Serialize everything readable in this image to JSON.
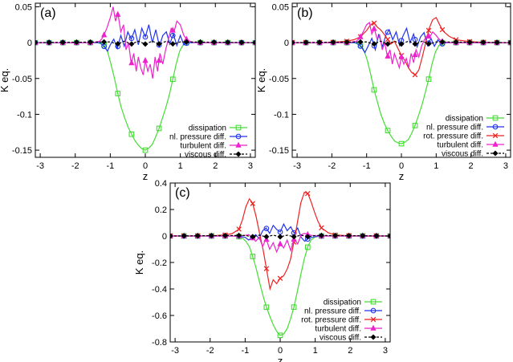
{
  "chart_data": [
    {
      "type": "line",
      "panel_label": "(a)",
      "xlabel": "z",
      "ylabel": "K eq.",
      "xlim": [
        -3.14,
        3.14
      ],
      "ylim": [
        -0.16,
        0.055
      ],
      "x_ticks": [
        -3,
        -2,
        -1,
        0,
        1,
        2,
        3
      ],
      "y_ticks": [
        0.05,
        0,
        -0.05,
        -0.1,
        -0.15
      ],
      "y_tick_labels": [
        "0.05",
        "0",
        "-0.05",
        "-0.1",
        "-0.15"
      ],
      "grid": false,
      "legend_position": "bottom-right",
      "series": [
        {
          "name": "dissipation",
          "color": "#44dd33",
          "marker": "square",
          "x": [
            -3.14,
            -2.75,
            -2.36,
            -1.96,
            -1.57,
            -1.37,
            -1.18,
            -1.08,
            -0.98,
            -0.88,
            -0.79,
            -0.69,
            -0.59,
            -0.49,
            -0.39,
            -0.29,
            -0.2,
            -0.1,
            0.0,
            0.1,
            0.2,
            0.29,
            0.39,
            0.49,
            0.59,
            0.69,
            0.79,
            0.88,
            0.98,
            1.08,
            1.18,
            1.37,
            1.57,
            1.96,
            2.36,
            2.75,
            3.14
          ],
          "y": [
            0,
            0,
            0,
            0,
            0,
            0,
            -0.003,
            -0.012,
            -0.03,
            -0.05,
            -0.07,
            -0.09,
            -0.105,
            -0.118,
            -0.128,
            -0.137,
            -0.143,
            -0.148,
            -0.15,
            -0.147,
            -0.142,
            -0.132,
            -0.12,
            -0.105,
            -0.09,
            -0.072,
            -0.05,
            -0.03,
            -0.012,
            -0.003,
            0,
            0,
            0,
            0,
            0,
            0,
            0
          ]
        },
        {
          "name": "nl. pressure diff.",
          "color": "#2233ee",
          "marker": "circle",
          "x": [
            -3.14,
            -1.5,
            -1.3,
            -1.18,
            -1.08,
            -1.0,
            -0.9,
            -0.8,
            -0.7,
            -0.6,
            -0.5,
            -0.4,
            -0.3,
            -0.2,
            -0.1,
            0.0,
            0.1,
            0.2,
            0.3,
            0.4,
            0.5,
            0.6,
            0.7,
            0.8,
            0.9,
            1.0,
            1.1,
            1.2,
            1.4,
            3.14
          ],
          "y": [
            0,
            0,
            0,
            -0.005,
            -0.012,
            -0.003,
            0.005,
            -0.008,
            0.01,
            -0.005,
            0.015,
            0.005,
            0.018,
            -0.003,
            0.02,
            0.008,
            0.025,
            0.0,
            0.018,
            -0.005,
            0.01,
            0.015,
            -0.002,
            0.012,
            -0.004,
            0.01,
            -0.003,
            0,
            0,
            0
          ]
        },
        {
          "name": "turbulent diff.",
          "color": "#ee22cc",
          "marker": "triangle",
          "x": [
            -3.14,
            -1.5,
            -1.3,
            -1.2,
            -1.1,
            -1.0,
            -0.92,
            -0.85,
            -0.78,
            -0.7,
            -0.62,
            -0.55,
            -0.48,
            -0.4,
            -0.33,
            -0.26,
            -0.2,
            -0.13,
            -0.06,
            0.0,
            0.07,
            0.14,
            0.21,
            0.28,
            0.35,
            0.42,
            0.5,
            0.58,
            0.66,
            0.74,
            0.82,
            0.9,
            1.0,
            1.1,
            1.2,
            1.4,
            3.14
          ],
          "y": [
            0,
            0,
            0.002,
            0.008,
            0.02,
            0.035,
            0.05,
            0.03,
            0.04,
            0.015,
            0.025,
            -0.01,
            0.0,
            -0.03,
            -0.015,
            -0.04,
            -0.02,
            -0.035,
            -0.045,
            -0.025,
            -0.04,
            -0.03,
            -0.05,
            -0.02,
            -0.04,
            -0.015,
            -0.03,
            -0.01,
            0.005,
            0.02,
            0.015,
            0.03,
            0.025,
            0.01,
            0.003,
            0,
            0
          ]
        },
        {
          "name": "viscous diff.",
          "color": "#000000",
          "marker": "diamond",
          "dashed": true,
          "x": [
            -3.14,
            -1.0,
            -0.8,
            -0.6,
            -0.4,
            -0.2,
            0.0,
            0.2,
            0.4,
            0.6,
            0.8,
            1.0,
            3.14
          ],
          "y": [
            0,
            0.001,
            -0.002,
            0.002,
            -0.002,
            0.002,
            -0.002,
            0.002,
            -0.002,
            0.002,
            -0.002,
            0.001,
            0
          ]
        }
      ]
    },
    {
      "type": "line",
      "panel_label": "(b)",
      "xlabel": "z",
      "ylabel": "K eq.",
      "xlim": [
        -3.14,
        3.14
      ],
      "ylim": [
        -0.16,
        0.055
      ],
      "x_ticks": [
        -3,
        -2,
        -1,
        0,
        1,
        2,
        3
      ],
      "y_ticks": [
        0.05,
        0,
        -0.05,
        -0.1,
        -0.15
      ],
      "y_tick_labels": [
        "0.05",
        "0",
        "-0.05",
        "-0.1",
        "-0.15"
      ],
      "grid": false,
      "legend_position": "bottom-right",
      "series": [
        {
          "name": "dissipation",
          "color": "#44dd33",
          "marker": "square",
          "x": [
            -3.14,
            -2.75,
            -2.36,
            -1.96,
            -1.57,
            -1.37,
            -1.18,
            -1.08,
            -0.98,
            -0.88,
            -0.79,
            -0.69,
            -0.59,
            -0.49,
            -0.39,
            -0.29,
            -0.2,
            -0.1,
            0.0,
            0.1,
            0.2,
            0.29,
            0.39,
            0.49,
            0.59,
            0.69,
            0.79,
            0.88,
            0.98,
            1.08,
            1.18,
            1.37,
            1.57,
            1.96,
            2.36,
            2.75,
            3.14
          ],
          "y": [
            0,
            0,
            0,
            0,
            0,
            0,
            -0.003,
            -0.01,
            -0.025,
            -0.045,
            -0.065,
            -0.083,
            -0.1,
            -0.113,
            -0.123,
            -0.131,
            -0.137,
            -0.14,
            -0.141,
            -0.139,
            -0.135,
            -0.127,
            -0.116,
            -0.102,
            -0.087,
            -0.069,
            -0.05,
            -0.03,
            -0.013,
            -0.004,
            0,
            0,
            0,
            0,
            0,
            0,
            0
          ]
        },
        {
          "name": "nl. pressure diff.",
          "color": "#2233ee",
          "marker": "circle",
          "x": [
            -3.14,
            -1.5,
            -1.3,
            -1.15,
            -1.05,
            -0.95,
            -0.85,
            -0.75,
            -0.65,
            -0.55,
            -0.45,
            -0.35,
            -0.25,
            -0.15,
            -0.05,
            0.05,
            0.15,
            0.25,
            0.35,
            0.45,
            0.55,
            0.65,
            0.75,
            0.85,
            0.95,
            1.05,
            1.15,
            1.3,
            1.5,
            3.14
          ],
          "y": [
            0,
            0,
            0,
            -0.006,
            -0.014,
            -0.004,
            0.006,
            -0.01,
            0.012,
            -0.006,
            0.01,
            0.018,
            0.004,
            0.015,
            -0.004,
            0.01,
            0.02,
            0.0,
            0.012,
            -0.006,
            0.008,
            0.014,
            -0.004,
            0.006,
            -0.005,
            0.004,
            -0.002,
            0,
            0,
            0
          ]
        },
        {
          "name": "rot. pressure diff.",
          "color": "#ee2222",
          "marker": "x",
          "x": [
            -3.14,
            -2.75,
            -2.36,
            -1.96,
            -1.57,
            -1.37,
            -1.18,
            -1.0,
            -0.9,
            -0.8,
            -0.7,
            -0.6,
            -0.5,
            -0.4,
            -0.3,
            -0.2,
            -0.1,
            0.0,
            0.1,
            0.2,
            0.3,
            0.4,
            0.5,
            0.6,
            0.7,
            0.8,
            0.9,
            1.0,
            1.1,
            1.2,
            1.37,
            1.57,
            1.96,
            2.36,
            2.75,
            3.14
          ],
          "y": [
            0,
            0,
            0,
            0.0005,
            0.002,
            0.004,
            0.008,
            0.017,
            0.024,
            0.028,
            0.022,
            0.018,
            0.012,
            0.005,
            -0.002,
            0.002,
            -0.008,
            -0.018,
            -0.025,
            -0.035,
            -0.042,
            -0.045,
            -0.038,
            -0.02,
            0.0,
            0.02,
            0.032,
            0.035,
            0.025,
            0.016,
            0.009,
            0.004,
            0.0015,
            0.0005,
            0,
            0
          ]
        },
        {
          "name": "turbulent diff.",
          "color": "#ee22cc",
          "marker": "triangle",
          "x": [
            -3.14,
            -1.5,
            -1.3,
            -1.2,
            -1.1,
            -1.0,
            -0.92,
            -0.85,
            -0.78,
            -0.7,
            -0.62,
            -0.55,
            -0.48,
            -0.4,
            -0.33,
            -0.26,
            -0.2,
            -0.13,
            -0.06,
            0.0,
            0.07,
            0.14,
            0.21,
            0.28,
            0.35,
            0.42,
            0.5,
            0.58,
            0.66,
            0.74,
            0.82,
            0.9,
            1.0,
            1.1,
            1.2,
            1.4,
            3.14
          ],
          "y": [
            0,
            0,
            0.002,
            0.006,
            0.015,
            0.025,
            0.028,
            0.012,
            0.02,
            0.005,
            0.01,
            -0.01,
            0.0,
            -0.02,
            -0.01,
            -0.03,
            -0.015,
            -0.025,
            -0.035,
            -0.02,
            -0.03,
            -0.022,
            -0.035,
            -0.015,
            -0.028,
            -0.01,
            -0.02,
            -0.005,
            0.004,
            0.01,
            0.008,
            0.015,
            0.01,
            0.004,
            0.001,
            0,
            0
          ]
        },
        {
          "name": "viscous diff.",
          "color": "#000000",
          "marker": "diamond",
          "dashed": true,
          "x": [
            -3.14,
            -1.0,
            -0.8,
            -0.6,
            -0.4,
            -0.2,
            0.0,
            0.2,
            0.4,
            0.6,
            0.8,
            1.0,
            3.14
          ],
          "y": [
            0,
            0.001,
            -0.002,
            0.002,
            -0.002,
            0.002,
            -0.002,
            0.002,
            -0.002,
            0.002,
            -0.002,
            0.001,
            0
          ]
        }
      ]
    },
    {
      "type": "line",
      "panel_label": "(c)",
      "xlabel": "z",
      "ylabel": "K eq.",
      "xlim": [
        -3.14,
        3.14
      ],
      "ylim": [
        -0.8,
        0.4
      ],
      "x_ticks": [
        -3,
        -2,
        -1,
        0,
        1,
        2,
        3
      ],
      "y_ticks": [
        0.4,
        0.2,
        0,
        -0.2,
        -0.4,
        -0.6,
        -0.8
      ],
      "y_tick_labels": [
        "0.4",
        "0.2",
        "0",
        "-0.2",
        "-0.4",
        "-0.6",
        "-0.8"
      ],
      "grid": false,
      "legend_position": "bottom-right",
      "series": [
        {
          "name": "dissipation",
          "color": "#44dd33",
          "marker": "square",
          "x": [
            -3.14,
            -2.75,
            -2.36,
            -1.96,
            -1.57,
            -1.37,
            -1.18,
            -1.08,
            -0.98,
            -0.88,
            -0.79,
            -0.69,
            -0.59,
            -0.49,
            -0.39,
            -0.29,
            -0.2,
            -0.1,
            0.0,
            0.1,
            0.2,
            0.29,
            0.39,
            0.49,
            0.59,
            0.69,
            0.79,
            0.88,
            0.98,
            1.08,
            1.18,
            1.37,
            1.57,
            1.96,
            2.36,
            2.75,
            3.14
          ],
          "y": [
            0,
            0,
            0,
            0,
            0,
            0,
            -0.005,
            -0.015,
            -0.04,
            -0.08,
            -0.15,
            -0.24,
            -0.35,
            -0.45,
            -0.54,
            -0.61,
            -0.67,
            -0.72,
            -0.75,
            -0.74,
            -0.7,
            -0.63,
            -0.54,
            -0.42,
            -0.29,
            -0.17,
            -0.08,
            -0.03,
            -0.01,
            -0.003,
            0,
            0,
            0,
            0,
            0,
            0,
            0
          ]
        },
        {
          "name": "nl. pressure diff.",
          "color": "#2233ee",
          "marker": "circle",
          "x": [
            -3.14,
            -1.5,
            -1.2,
            -1.0,
            -0.9,
            -0.8,
            -0.7,
            -0.6,
            -0.5,
            -0.4,
            -0.3,
            -0.2,
            -0.1,
            0.0,
            0.1,
            0.2,
            0.3,
            0.4,
            0.5,
            0.6,
            0.7,
            0.8,
            0.9,
            1.0,
            1.2,
            1.5,
            3.14
          ],
          "y": [
            0,
            0,
            0,
            -0.01,
            -0.03,
            -0.015,
            0.01,
            -0.02,
            0.04,
            0.06,
            0.02,
            0.08,
            0.05,
            0.03,
            0.09,
            0.04,
            0.07,
            0.02,
            0.06,
            -0.01,
            -0.04,
            -0.02,
            -0.01,
            -0.005,
            0,
            0,
            0
          ]
        },
        {
          "name": "rot. pressure diff.",
          "color": "#ee2222",
          "marker": "x",
          "x": [
            -3.14,
            -2.75,
            -2.36,
            -1.96,
            -1.57,
            -1.37,
            -1.18,
            -1.08,
            -0.98,
            -0.88,
            -0.79,
            -0.69,
            -0.59,
            -0.49,
            -0.39,
            -0.29,
            -0.2,
            -0.1,
            0.0,
            0.1,
            0.2,
            0.29,
            0.39,
            0.49,
            0.59,
            0.69,
            0.79,
            0.88,
            0.98,
            1.08,
            1.18,
            1.37,
            1.57,
            1.96,
            2.36,
            2.75,
            3.14
          ],
          "y": [
            0,
            0,
            0,
            0.002,
            0.008,
            0.018,
            0.05,
            0.12,
            0.22,
            0.28,
            0.25,
            0.15,
            0.02,
            -0.1,
            -0.25,
            -0.4,
            -0.33,
            -0.36,
            -0.32,
            -0.3,
            -0.25,
            -0.18,
            -0.05,
            0.1,
            0.25,
            0.33,
            0.32,
            0.26,
            0.18,
            0.11,
            0.06,
            0.025,
            0.008,
            0.002,
            0,
            0,
            0
          ]
        },
        {
          "name": "turbulent diff.",
          "color": "#ee22cc",
          "marker": "triangle",
          "x": [
            -3.14,
            -1.5,
            -1.2,
            -1.0,
            -0.9,
            -0.8,
            -0.7,
            -0.6,
            -0.5,
            -0.4,
            -0.3,
            -0.2,
            -0.1,
            0.0,
            0.1,
            0.2,
            0.3,
            0.4,
            0.5,
            0.6,
            0.7,
            0.8,
            0.9,
            1.0,
            1.2,
            1.5,
            3.14
          ],
          "y": [
            0,
            0,
            0,
            0.005,
            0.01,
            -0.01,
            -0.04,
            -0.01,
            -0.08,
            -0.02,
            -0.1,
            -0.05,
            -0.12,
            -0.06,
            -0.09,
            -0.03,
            -0.11,
            -0.02,
            -0.06,
            0.01,
            0.02,
            0.01,
            0.005,
            0.002,
            0,
            0,
            0
          ]
        },
        {
          "name": "viscous diff.",
          "color": "#000000",
          "marker": "diamond",
          "dashed": true,
          "x": [
            -3.14,
            -1.0,
            -0.8,
            -0.6,
            -0.4,
            -0.2,
            0.0,
            0.2,
            0.4,
            0.6,
            0.8,
            1.0,
            3.14
          ],
          "y": [
            0,
            0.004,
            -0.006,
            0.006,
            -0.006,
            0.006,
            -0.006,
            0.006,
            -0.006,
            0.006,
            -0.006,
            0.004,
            0
          ]
        }
      ]
    }
  ]
}
